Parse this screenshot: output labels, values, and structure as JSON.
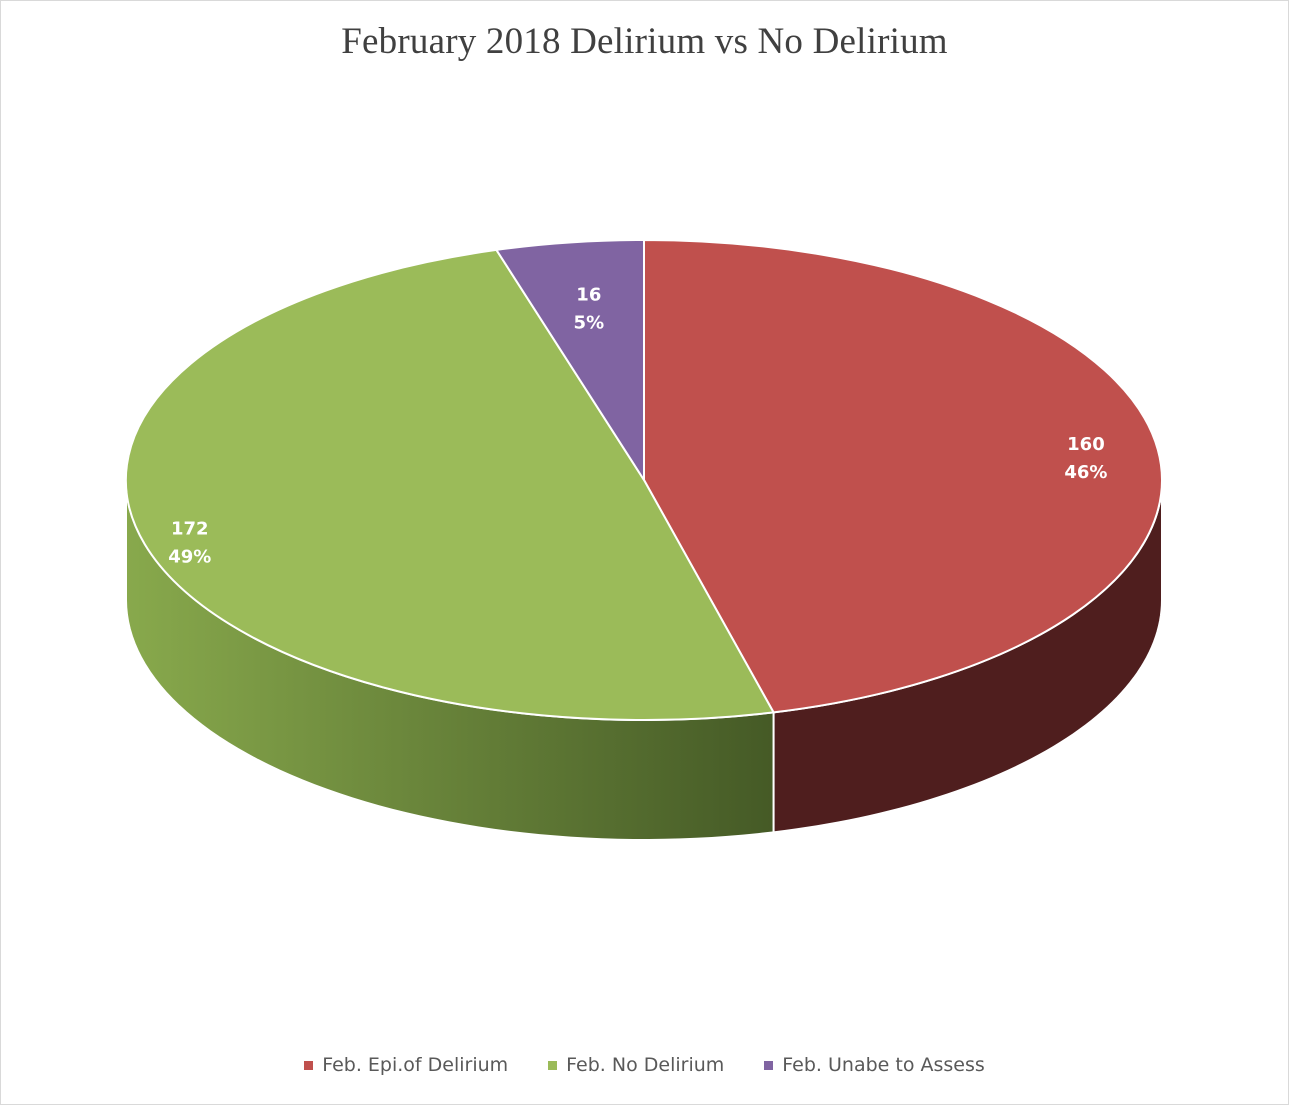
{
  "chart_data": {
    "type": "pie",
    "title": "February 2018 Delirium vs No Delirium",
    "categories": [
      "Feb. Epi.of Delirium",
      "Feb. No Delirium",
      "Feb. Unabe to Assess"
    ],
    "values": [
      160,
      172,
      16
    ],
    "percent_labels": [
      "46%",
      "49%",
      "5%"
    ],
    "colors": [
      "#c0504d",
      "#9bbb59",
      "#8064a2"
    ],
    "side_colors": [
      "#4f1e1e",
      "#7a9445",
      "#5a4672"
    ],
    "style": "3d",
    "legend_position": "bottom"
  }
}
